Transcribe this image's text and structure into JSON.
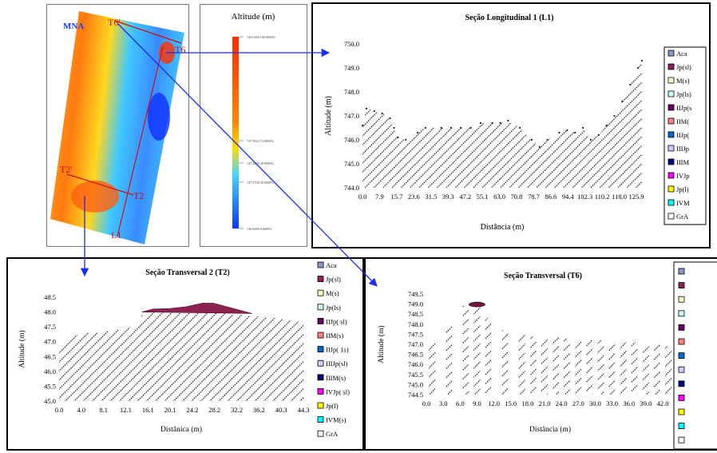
{
  "map": {
    "label": "MNA",
    "lines": [
      {
        "label": "T6'",
        "end_label": "T6"
      },
      {
        "label": "T2'",
        "end_label": "T2"
      },
      {
        "label": "L1"
      }
    ]
  },
  "colorbar": {
    "title": "Altitude (m)",
    "ticks": [
      {
        "value": "749.0169",
        "pct": "100.0000%"
      },
      {
        "value": "747.5924",
        "pct": "74.0064%"
      },
      {
        "value": "747.4499",
        "pct": "40.0000%"
      },
      {
        "value": "747.1700",
        "pct": "20.0000%"
      },
      {
        "value": "746.0689",
        "pct": "0.0000%"
      }
    ],
    "colors": [
      "#ff2a00",
      "#ff8800",
      "#ffe000",
      "#46d4ff",
      "#0a38ff"
    ]
  },
  "chart_data": [
    {
      "type": "area",
      "title": "Seção Longitudinal 1 (L1)",
      "xlabel": "Distância (m)",
      "ylabel": "Altitude (m)",
      "ylim": [
        744.0,
        750.0
      ],
      "y_ticks": [
        "744.0",
        "745.0",
        "746.0",
        "747.0",
        "748.0",
        "749.0",
        "750.0"
      ],
      "x_ticks": [
        "0.0",
        "7.9",
        "15.7",
        "23.6",
        "31.5",
        "39.3",
        "47.2",
        "55.1",
        "63.0",
        "70.8",
        "78.7",
        "86.6",
        "94.4",
        "102.3",
        "110.2",
        "118.0",
        "125.9"
      ],
      "x": [
        0,
        2,
        6,
        10,
        14,
        16,
        18,
        22,
        28,
        32,
        40,
        45,
        50,
        55,
        60,
        66,
        70,
        74,
        80,
        86,
        90,
        94,
        100,
        104,
        108,
        112,
        116,
        120,
        124,
        128,
        132,
        136,
        140,
        142
      ],
      "y": [
        746.6,
        747.3,
        747.2,
        747.1,
        746.9,
        746.5,
        746.1,
        746.0,
        746.3,
        746.5,
        746.5,
        746.5,
        746.5,
        746.5,
        746.7,
        746.7,
        746.7,
        746.8,
        746.5,
        746.0,
        745.7,
        746.0,
        746.3,
        746.4,
        746.3,
        746.5,
        746.0,
        746.2,
        746.6,
        747.0,
        747.6,
        748.3,
        749.0,
        749.3
      ],
      "legend": [
        "Aca",
        "Jp(sl)",
        "M(s)",
        "Jp(ls)",
        "IIJp(s",
        "IIM(",
        "IIJp(",
        "IIIJp",
        "IIIM",
        "IVJp",
        "Jp(l)",
        "IVM",
        "GrA"
      ],
      "legend_colors": [
        "#8899cc",
        "#8b2252",
        "#ffffcc",
        "#ccffff",
        "#660066",
        "#ff8080",
        "#0066cc",
        "#ccccff",
        "#000080",
        "#ff00ff",
        "#ffff00",
        "#00ffff",
        "#ffffff"
      ]
    },
    {
      "type": "area",
      "title": "Seção Transversal 2 (T2)",
      "xlabel": "Distânica (m)",
      "ylabel": "Altitude (m)",
      "ylim": [
        45.0,
        48.5
      ],
      "y_ticks": [
        "45.0",
        "45.5",
        "46.0",
        "46.5",
        "47.0",
        "47.5",
        "48.0",
        "48.5"
      ],
      "x_ticks": [
        "0.0",
        "4.0",
        "8.1",
        "12.1",
        "16.1",
        "20.1",
        "24.2",
        "28.2",
        "32.2",
        "36.2",
        "40.3",
        "44.3"
      ],
      "x": [
        0,
        2,
        4,
        7,
        10,
        12,
        13,
        14,
        15,
        17,
        20,
        22,
        25,
        28,
        30,
        33,
        36,
        39,
        41,
        43,
        44.3
      ],
      "y": [
        46.8,
        47.1,
        47.3,
        47.3,
        47.4,
        47.4,
        47.5,
        47.6,
        47.9,
        48.0,
        48.0,
        48.0,
        48.0,
        48.0,
        47.95,
        47.9,
        47.85,
        47.8,
        47.75,
        47.7,
        47.65
      ],
      "top_layer": {
        "x": [
          15,
          17,
          20,
          23,
          26,
          28,
          30,
          33,
          35
        ],
        "y": [
          48.0,
          48.1,
          48.12,
          48.18,
          48.3,
          48.3,
          48.2,
          48.05,
          47.95
        ]
      },
      "legend": [
        "Aca",
        "Jp(sl)",
        "M(s)",
        "Jp(ls)",
        "IIJp( sl)",
        "IIM(s)",
        "IIJp( 1s)",
        "IIIJp(sl)",
        "IIIM(s)",
        "IVJp( sl)",
        "Jp(l)",
        "IVM(s)",
        "GrA"
      ],
      "legend_colors": [
        "#8899cc",
        "#8b2252",
        "#ffffcc",
        "#ccffff",
        "#660066",
        "#ff8080",
        "#0066cc",
        "#ccccff",
        "#000080",
        "#ff00ff",
        "#ffff00",
        "#00ffff",
        "#ffffff"
      ]
    },
    {
      "type": "bar",
      "title": "Seção Transversal (T6)",
      "xlabel": "Distância (m)",
      "ylabel": "Altitude (m)",
      "ylim": [
        744.5,
        749.5
      ],
      "y_ticks": [
        "744.5",
        "745.0",
        "745.5",
        "746.0",
        "746.5",
        "747.0",
        "747.5",
        "748.0",
        "748.5",
        "749.0",
        "749.5"
      ],
      "x_ticks": [
        "0.0",
        "3.0",
        "6.0",
        "9.0",
        "12.0",
        "15.0",
        "18.0",
        "21.0",
        "24.0",
        "27.0",
        "30.0",
        "33.0",
        "36.0",
        "39.0",
        "42.0"
      ],
      "x": [
        1,
        4,
        7,
        9,
        11,
        14,
        17,
        19,
        21,
        23,
        25,
        27,
        29,
        31,
        33,
        35,
        37,
        39,
        41,
        43
      ],
      "values": [
        747.1,
        747.9,
        748.9,
        749.0,
        748.3,
        747.7,
        747.5,
        747.4,
        747.3,
        747.4,
        747.3,
        747.2,
        747.2,
        747.2,
        747.1,
        747.1,
        747.1,
        747.0,
        747.0,
        746.9
      ],
      "legend_colors": [
        "#8899cc",
        "#8b2252",
        "#ffffcc",
        "#ccffff",
        "#660066",
        "#ff8080",
        "#0066cc",
        "#ccccff",
        "#000080",
        "#ff00ff",
        "#ffff00",
        "#00ffff",
        "#ffffff"
      ]
    }
  ]
}
